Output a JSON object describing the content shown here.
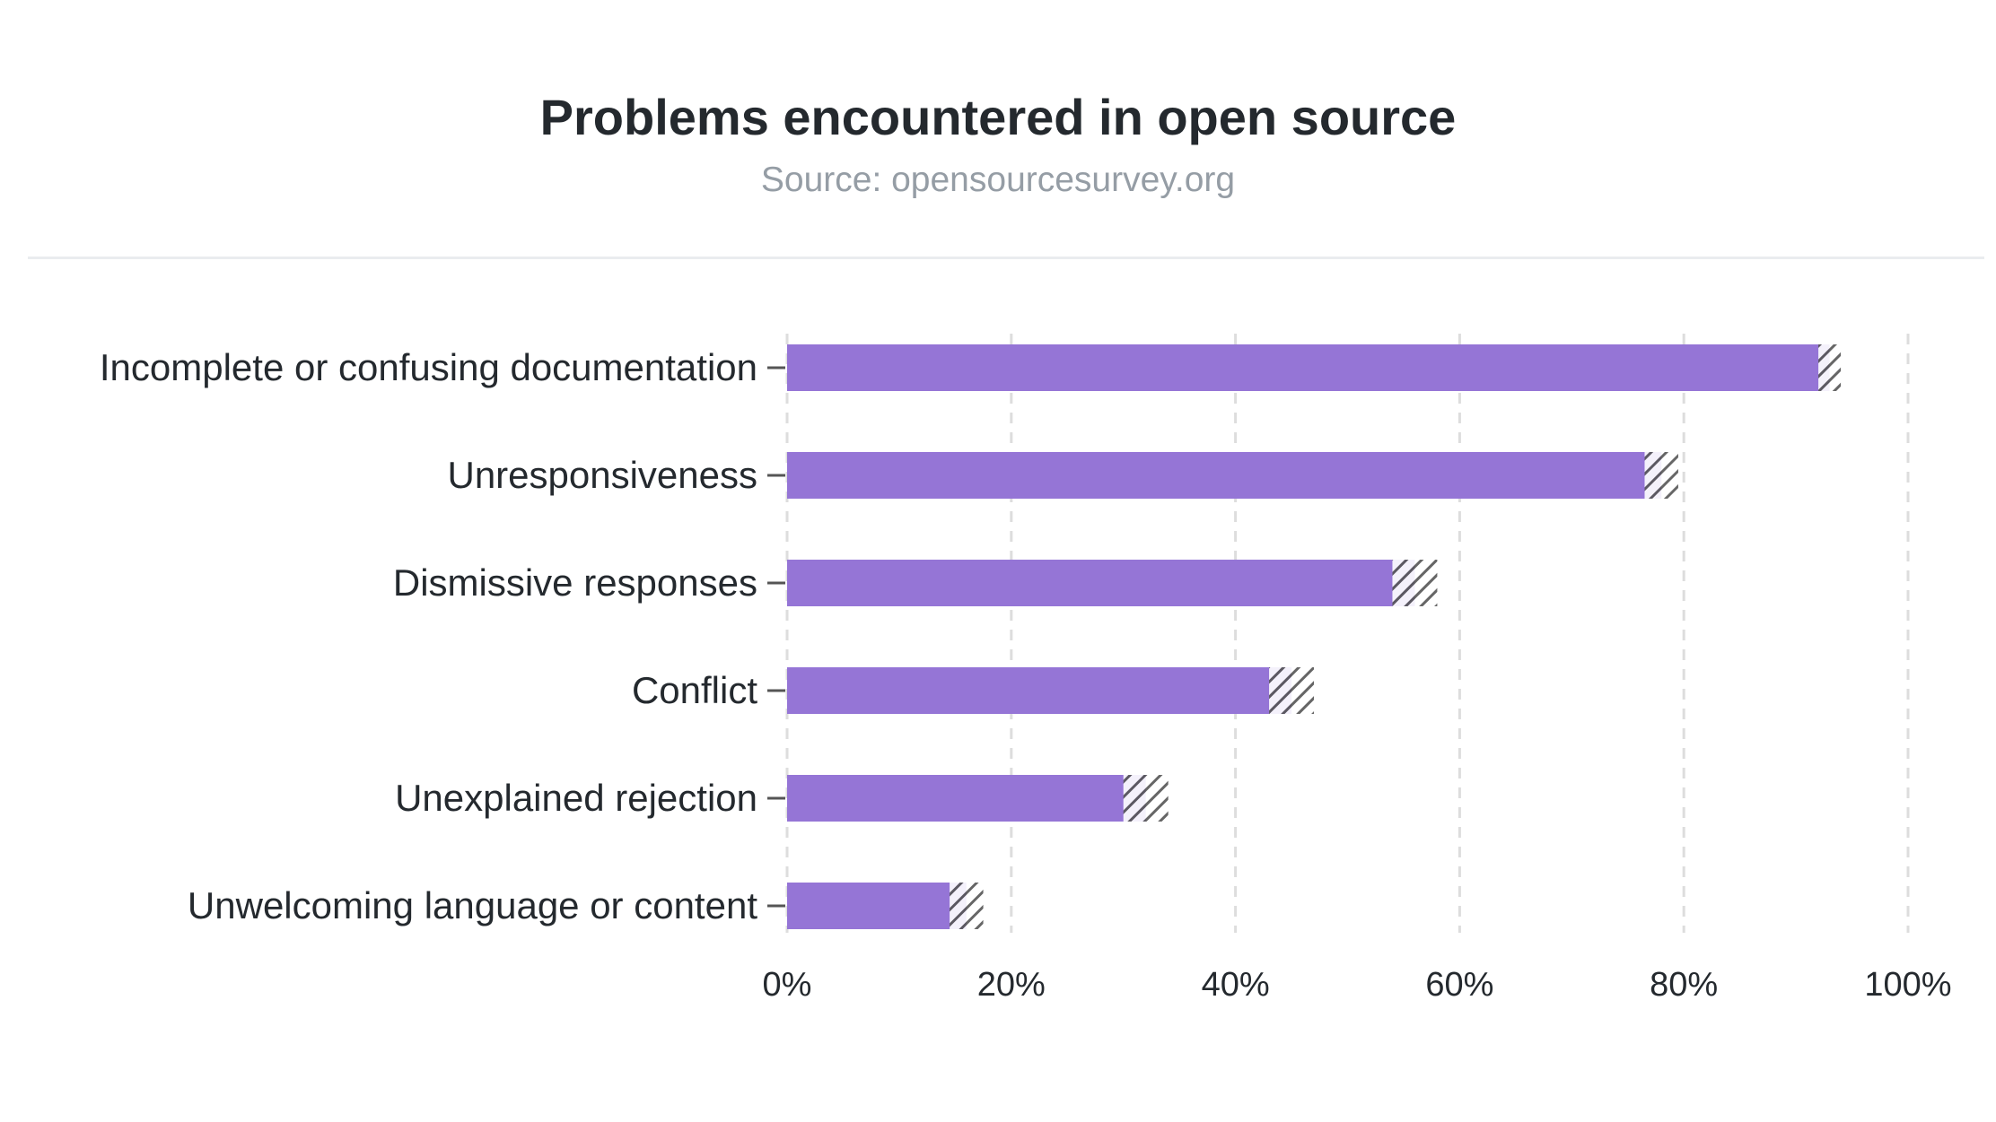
{
  "chart_data": {
    "type": "bar",
    "orientation": "horizontal",
    "title": "Problems encountered in open source",
    "subtitle": "Source: opensourcesurvey.org",
    "categories": [
      "Incomplete or confusing documentation",
      "Unresponsiveness",
      "Dismissive responses",
      "Conflict",
      "Unexplained rejection",
      "Unwelcoming language or content"
    ],
    "values": [
      93,
      78,
      56,
      45,
      32,
      16
    ],
    "error_margin": [
      1,
      1.5,
      2,
      2,
      2,
      1.5
    ],
    "xlim": [
      0,
      100
    ],
    "xticks": [
      "0%",
      "20%",
      "40%",
      "60%",
      "80%",
      "100%"
    ],
    "grid": "vertical dashed",
    "colors": {
      "bar": "#9575d6",
      "hatch": "#444444",
      "grid": "#dddddd",
      "text": "#24292e"
    }
  }
}
